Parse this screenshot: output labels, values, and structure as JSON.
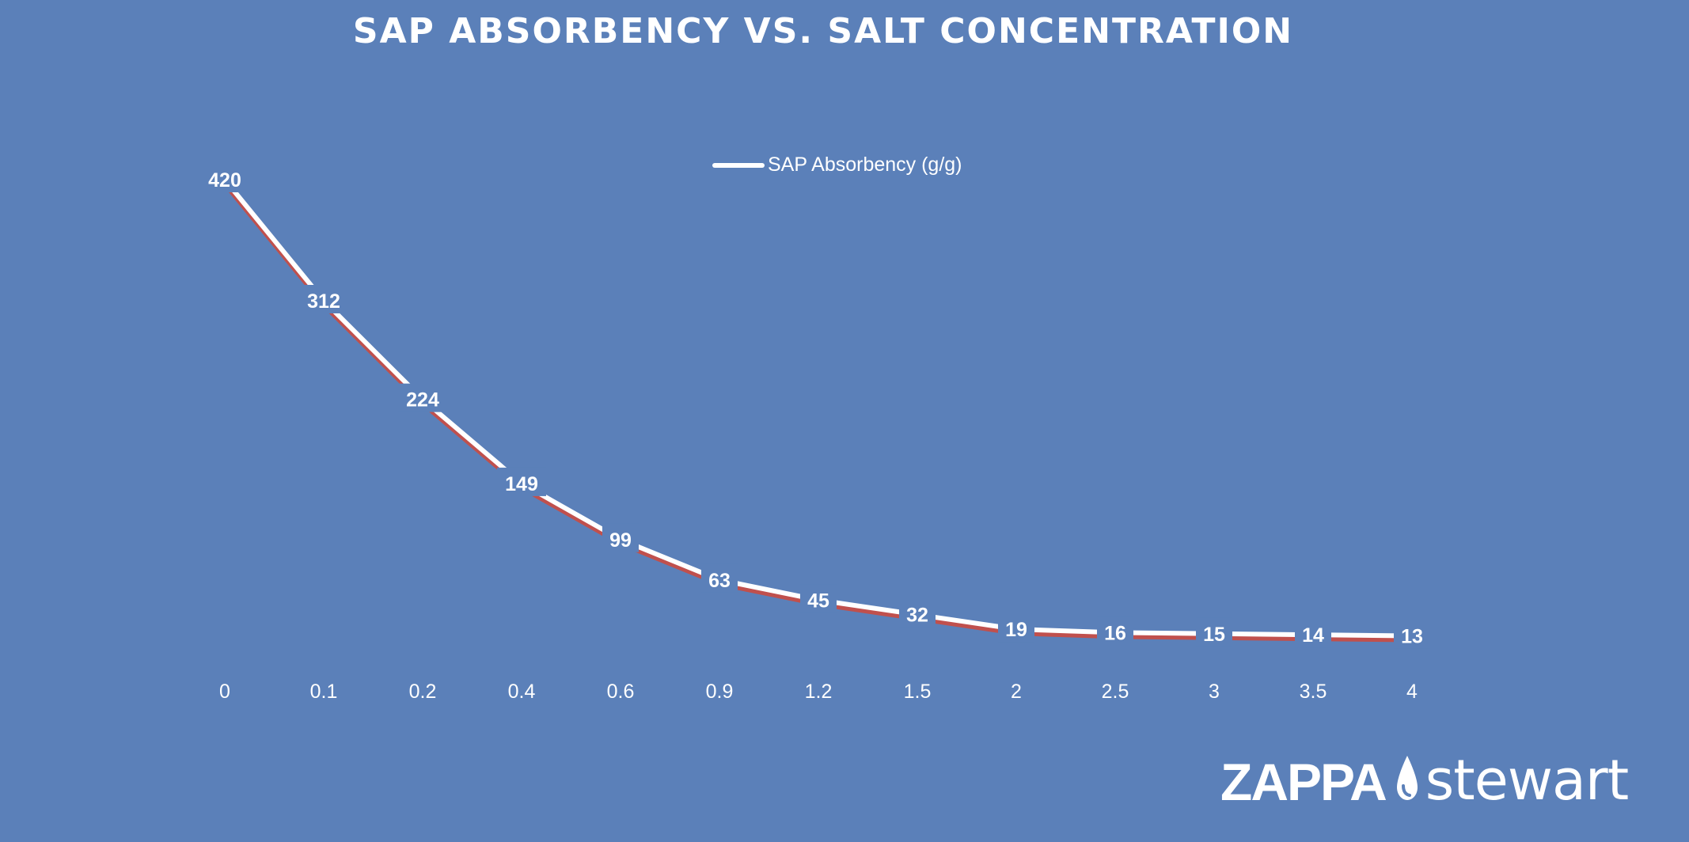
{
  "chart_data": {
    "type": "line",
    "title": "SAP ABSORBENCY VS. SALT CONCENTRATION",
    "xlabel": "",
    "ylabel": "",
    "categories": [
      "0",
      "0.1",
      "0.2",
      "0.4",
      "0.6",
      "0.9",
      "1.2",
      "1.5",
      "2",
      "2.5",
      "3",
      "3.5",
      "4"
    ],
    "series": [
      {
        "name": "SAP Absorbency (g/g)",
        "values": [
          420,
          312,
          224,
          149,
          99,
          63,
          45,
          32,
          19,
          16,
          15,
          14,
          13
        ],
        "color": "#ffffff",
        "shadow_color": "#c0504d"
      }
    ],
    "ylim": [
      0,
      420
    ],
    "data_labels": true,
    "drop_lines": true,
    "grid": false,
    "legend_position": "top"
  },
  "legend": {
    "label": "SAP Absorbency (g/g)"
  },
  "logo": {
    "part1": "ZAPPA",
    "part2": "stewart",
    "drop_icon": "water-drop-icon"
  },
  "colors": {
    "background": "#5b80b9",
    "line": "#ffffff",
    "line_shadow": "#c0504d"
  }
}
